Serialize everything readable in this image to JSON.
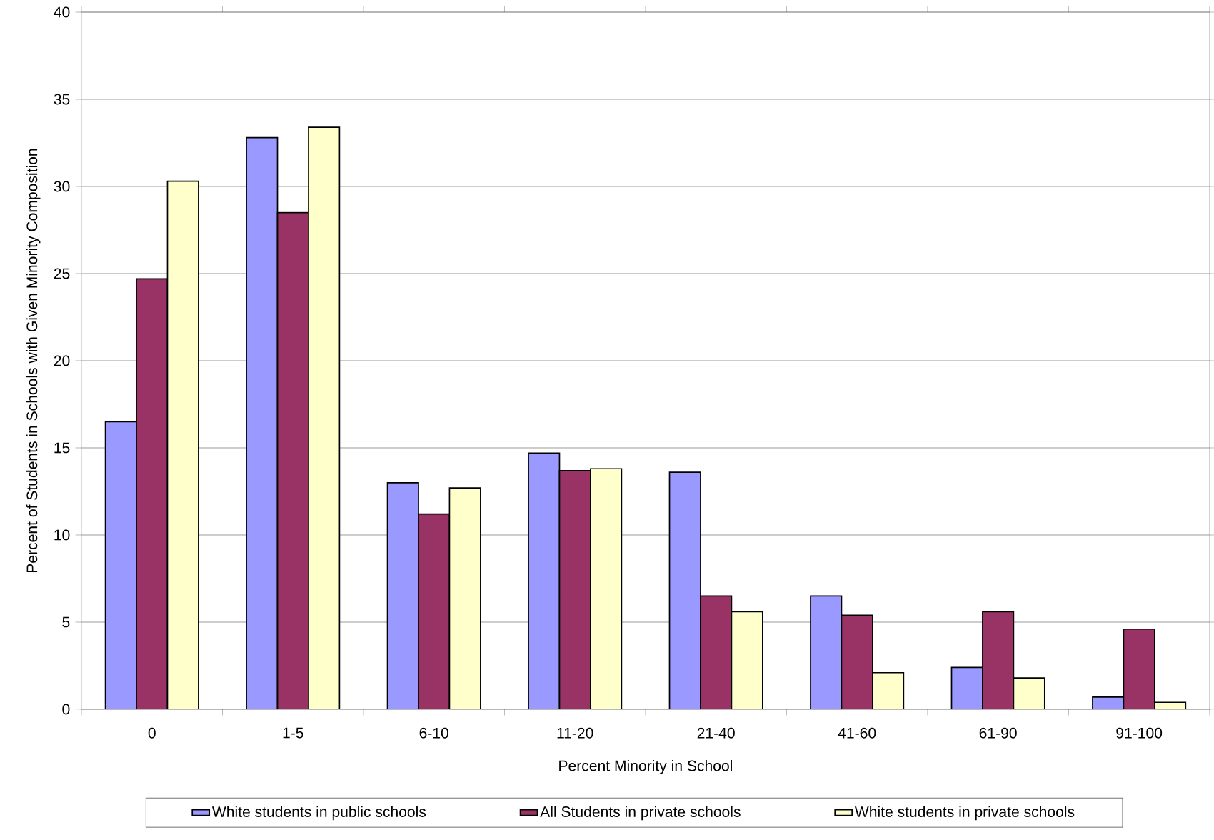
{
  "chart_data": {
    "type": "bar",
    "xlabel": "Percent Minority in School",
    "ylabel": "Percent of Students in Schools with Given Minority Composition",
    "categories": [
      "0",
      "1-5",
      "6-10",
      "11-20",
      "21-40",
      "41-60",
      "61-90",
      "91-100"
    ],
    "series": [
      {
        "name": "White students in public schools",
        "color": "#9999ff",
        "values": [
          16.5,
          32.8,
          13.0,
          14.7,
          13.6,
          6.5,
          2.4,
          0.7
        ]
      },
      {
        "name": "All Students in private schools",
        "color": "#993366",
        "values": [
          24.7,
          28.5,
          11.2,
          13.7,
          6.5,
          5.4,
          5.6,
          4.6
        ]
      },
      {
        "name": "White students in private schools",
        "color": "#ffffcc",
        "values": [
          30.3,
          33.4,
          12.7,
          13.8,
          5.6,
          2.1,
          1.8,
          0.4
        ]
      }
    ],
    "ylim": [
      0,
      40
    ],
    "yticks": [
      0,
      5,
      10,
      15,
      20,
      25,
      30,
      35,
      40
    ],
    "grid": "y",
    "legend": "bottom"
  }
}
